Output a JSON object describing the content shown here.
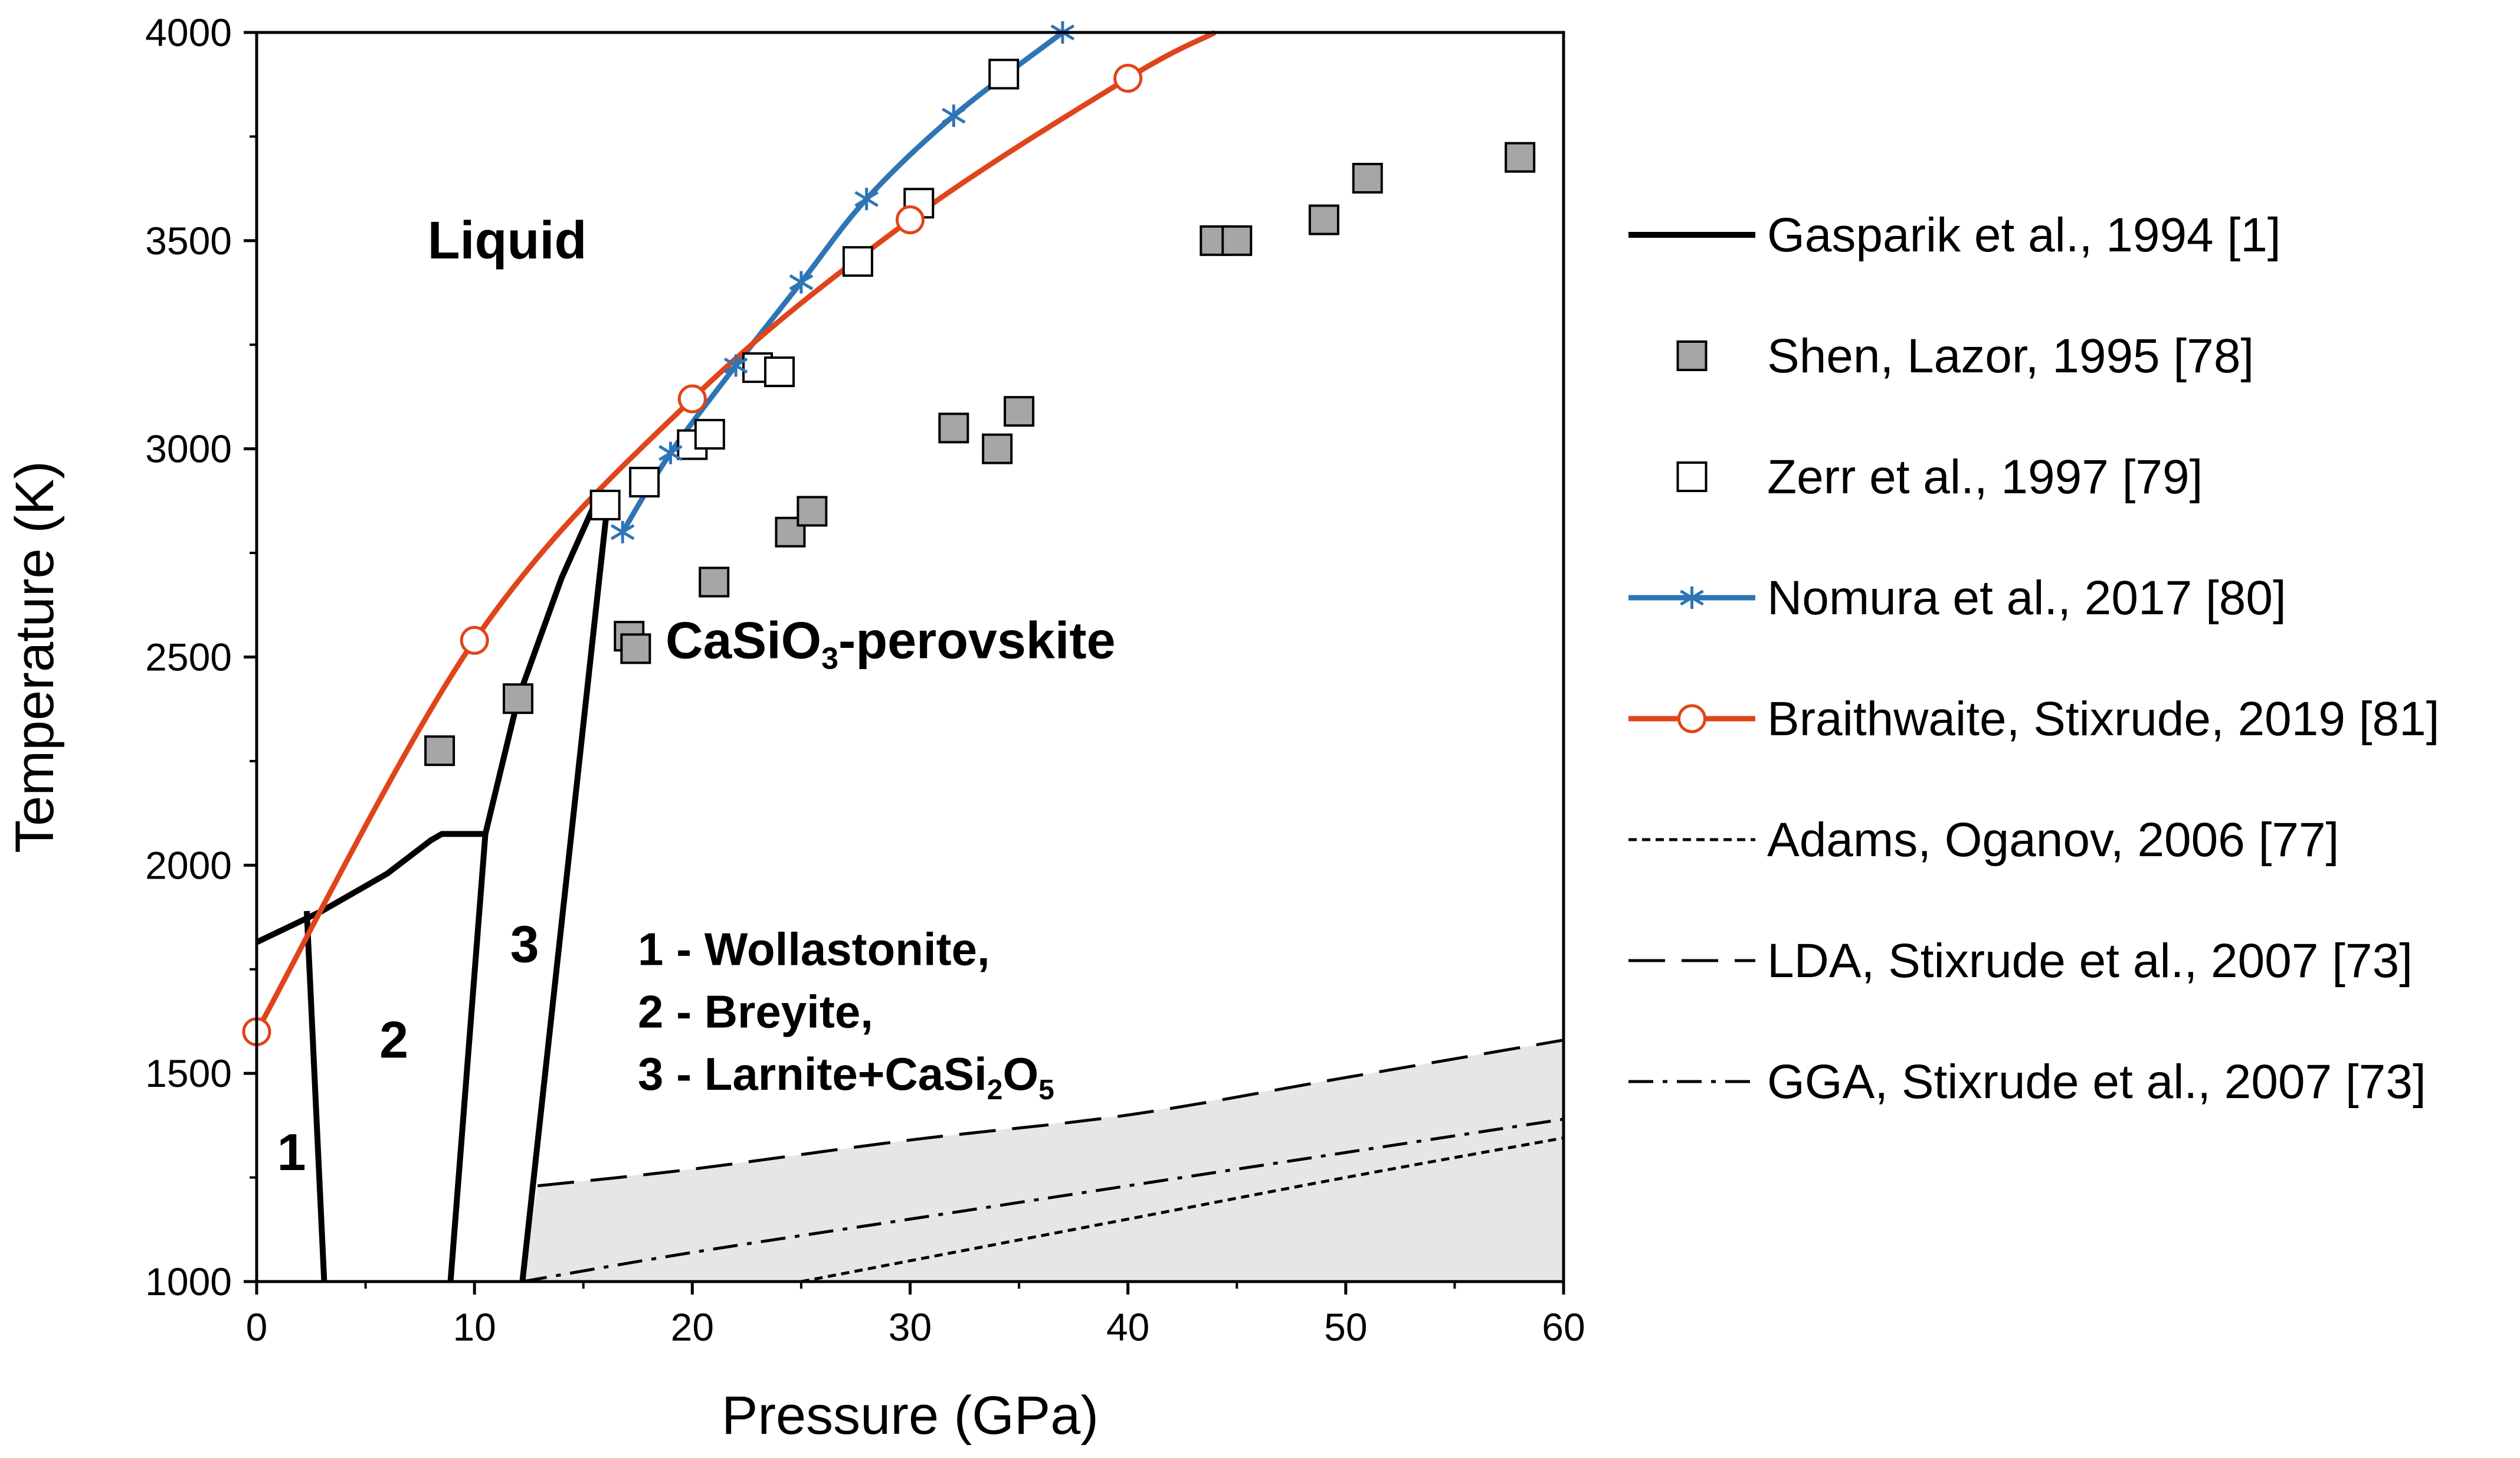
{
  "chart_data": {
    "type": "scatter",
    "title": "",
    "xlabel": "Pressure (GPa)",
    "ylabel": "Temperature (K)",
    "xlim": [
      0,
      60
    ],
    "ylim": [
      1000,
      4000
    ],
    "xticks": [
      0,
      10,
      20,
      30,
      40,
      50,
      60
    ],
    "yticks": [
      1000,
      1500,
      2000,
      2500,
      3000,
      3500,
      4000
    ],
    "grid": false,
    "legend_position": "right, outside plot",
    "region_labels": [
      {
        "text": "Liquid",
        "x": 11.5,
        "y": 3500
      },
      {
        "text": "1",
        "x": 1.6,
        "y": 1310
      },
      {
        "text": "2",
        "x": 6.3,
        "y": 1580
      },
      {
        "text": "3",
        "x": 12.3,
        "y": 1810
      }
    ],
    "perovskite_label": {
      "base": "CaSiO",
      "sub": "3",
      "rest": "-perovskite",
      "x": 29.1,
      "y": 2540
    },
    "phase_note": {
      "line1": "1 - Wollastonite,",
      "line2": "2 - Breyite,",
      "line3_pre": "3 - Larnite+CaSi",
      "line3_sub1": "2",
      "line3_mid": "O",
      "line3_sub2": "5",
      "x": 17.5,
      "y": [
        1800,
        1650,
        1500
      ]
    },
    "shaded_region": {
      "color": "#e6e6e6",
      "bounds": [
        [
          12.2,
          1000
        ],
        [
          12.9,
          1230
        ],
        [
          20,
          1270
        ],
        [
          30,
          1340
        ],
        [
          40,
          1400
        ],
        [
          50,
          1490
        ],
        [
          60,
          1580
        ],
        [
          60,
          1000
        ]
      ]
    },
    "series": [
      {
        "name": "Gasparik et al., 1994 [1]",
        "style": "solid-thick",
        "color": "#000000",
        "segments": [
          [
            [
              0,
              1815
            ],
            [
              3,
              1890
            ],
            [
              6,
              1980
            ],
            [
              8,
              2060
            ],
            [
              8.5,
              2075
            ],
            [
              10.5,
              2075
            ],
            [
              12,
              2400
            ],
            [
              14,
              2690
            ],
            [
              15.5,
              2865
            ]
          ],
          [
            [
              2.3,
              1890
            ],
            [
              3.1,
              1000
            ]
          ],
          [
            [
              10.5,
              2075
            ],
            [
              8.9,
              1000
            ]
          ],
          [
            [
              16.1,
              2865
            ],
            [
              12.2,
              1000
            ]
          ]
        ]
      },
      {
        "name": "Shen, Lazor, 1995 [78]",
        "marker": "square-filled",
        "color": "#a6a6a6",
        "x": [
          8.4,
          12,
          17.1,
          17.4,
          21,
          24.5,
          25.5,
          32,
          34,
          35,
          44,
          45,
          49,
          51,
          58
        ],
        "y": [
          2275,
          2400,
          2550,
          2520,
          2680,
          2800,
          2850,
          3050,
          3000,
          3090,
          3500,
          3500,
          3550,
          3650,
          3700
        ]
      },
      {
        "name": "Zerr et al., 1997 [79]",
        "marker": "square-open",
        "color": "#000000",
        "x": [
          16,
          17.8,
          20,
          20.8,
          23,
          24,
          27.6,
          30.4,
          34.3
        ],
        "y": [
          2865,
          2920,
          3010,
          3035,
          3195,
          3185,
          3450,
          3590,
          3900
        ]
      },
      {
        "name": "Nomura et al., 2017 [80]",
        "marker": "asterisk",
        "color": "#2e75b6",
        "x": [
          16.8,
          19,
          22,
          25,
          28,
          32,
          37
        ],
        "y": [
          2800,
          2990,
          3200,
          3400,
          3600,
          3800,
          4000
        ]
      },
      {
        "name": "Braithwaite, Stixrude, 2019 [81]",
        "marker": "circle-open",
        "color": "#e0441a",
        "x": [
          0,
          10,
          20,
          30,
          40
        ],
        "y": [
          1600,
          2540,
          3120,
          3550,
          3890
        ],
        "curve_ext": [
          [
            44,
            4000
          ]
        ]
      },
      {
        "name": "Adams, Oganov, 2006 [77]",
        "style": "short-dash",
        "color": "#000000",
        "x": [
          25,
          30,
          40,
          50,
          60
        ],
        "y": [
          1000,
          1050,
          1150,
          1250,
          1345
        ]
      },
      {
        "name": "LDA, Stixrude et al., 2007 [73]",
        "style": "long-dash",
        "color": "#000000",
        "x": [
          12.9,
          20,
          30,
          40,
          50,
          60
        ],
        "y": [
          1230,
          1270,
          1340,
          1400,
          1490,
          1580
        ]
      },
      {
        "name": "GGA, Stixrude et al., 2007 [73]",
        "style": "dash-dot",
        "color": "#000000",
        "x": [
          12.2,
          20,
          30,
          40,
          50,
          60
        ],
        "y": [
          1000,
          1070,
          1150,
          1230,
          1310,
          1390
        ]
      }
    ]
  }
}
